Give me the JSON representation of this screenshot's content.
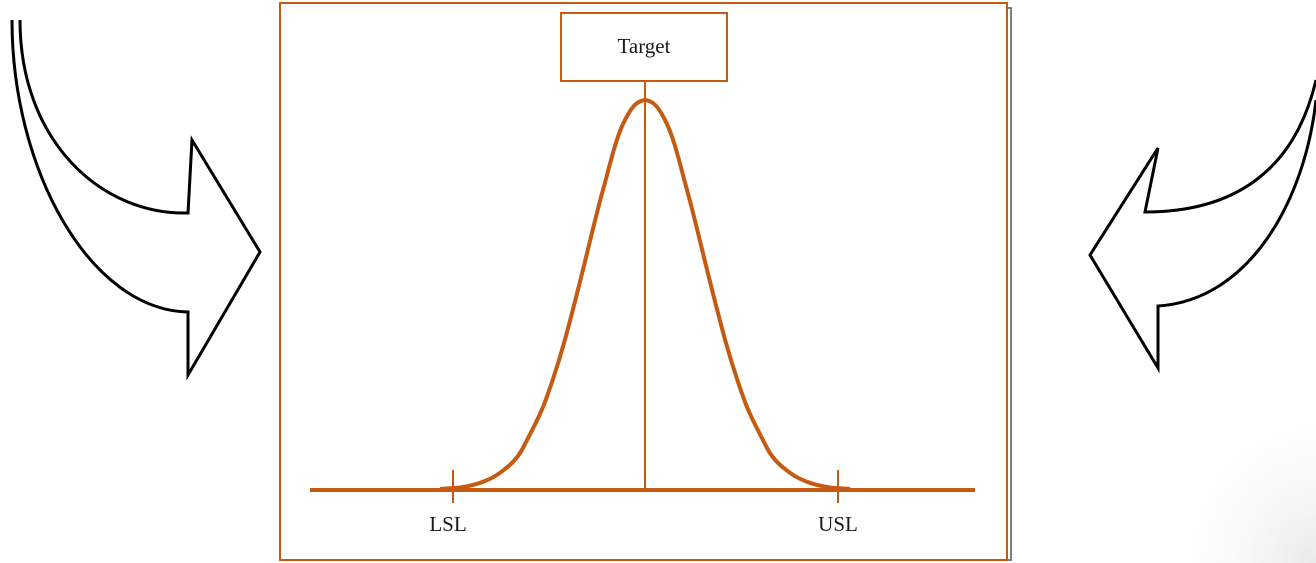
{
  "diagram": {
    "target_label": "Target",
    "lower_label": "LSL",
    "upper_label": "USL"
  }
}
